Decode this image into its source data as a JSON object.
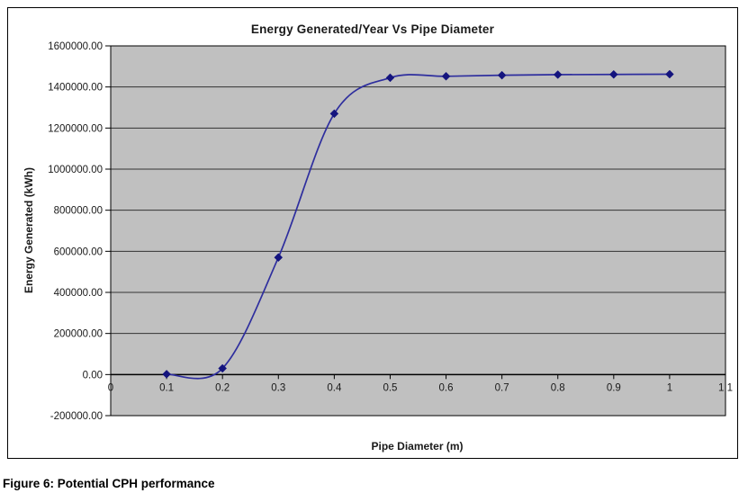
{
  "page": {
    "caption": "Figure 6: Potential CPH performance"
  },
  "chart_data": {
    "type": "line",
    "title": "Energy Generated/Year Vs Pipe Diameter",
    "xlabel": "Pipe Diameter (m)",
    "ylabel": "Energy Generated (kWh)",
    "x": [
      0.1,
      0.2,
      0.3,
      0.4,
      0.5,
      0.6,
      0.7,
      0.8,
      0.9,
      1.0
    ],
    "values": [
      2000,
      30000,
      570000,
      1270000,
      1445000,
      1452000,
      1457000,
      1460000,
      1461000,
      1462000
    ],
    "xlim": [
      0,
      1.1
    ],
    "ylim": [
      -200000,
      1600000
    ],
    "x_tick_values": [
      0,
      0.1,
      0.2,
      0.3,
      0.4,
      0.5,
      0.6,
      0.7,
      0.8,
      0.9,
      1.0,
      1.1
    ],
    "x_tick_labels": [
      "0",
      "0.1",
      "0.2",
      "0.3",
      "0.4",
      "0.5",
      "0.6",
      "0.7",
      "0.8",
      "0.9",
      "1",
      "1.1"
    ],
    "y_tick_values": [
      -200000,
      0,
      200000,
      400000,
      600000,
      800000,
      1000000,
      1200000,
      1400000,
      1600000
    ],
    "y_tick_labels": [
      "-200000.00",
      "0.00",
      "200000.00",
      "400000.00",
      "600000.00",
      "800000.00",
      "1000000.00",
      "1200000.00",
      "1400000.00",
      "1600000.00"
    ],
    "grid": "horizontal",
    "legend": "none",
    "line_style": "smoothed",
    "marker": "diamond",
    "colors": {
      "line": "#2e2e9e",
      "marker": "#14147e",
      "plot_background": "#c0c0c0",
      "gridline": "#333333",
      "axis": "#000000",
      "text": "#1a1a1a"
    }
  }
}
